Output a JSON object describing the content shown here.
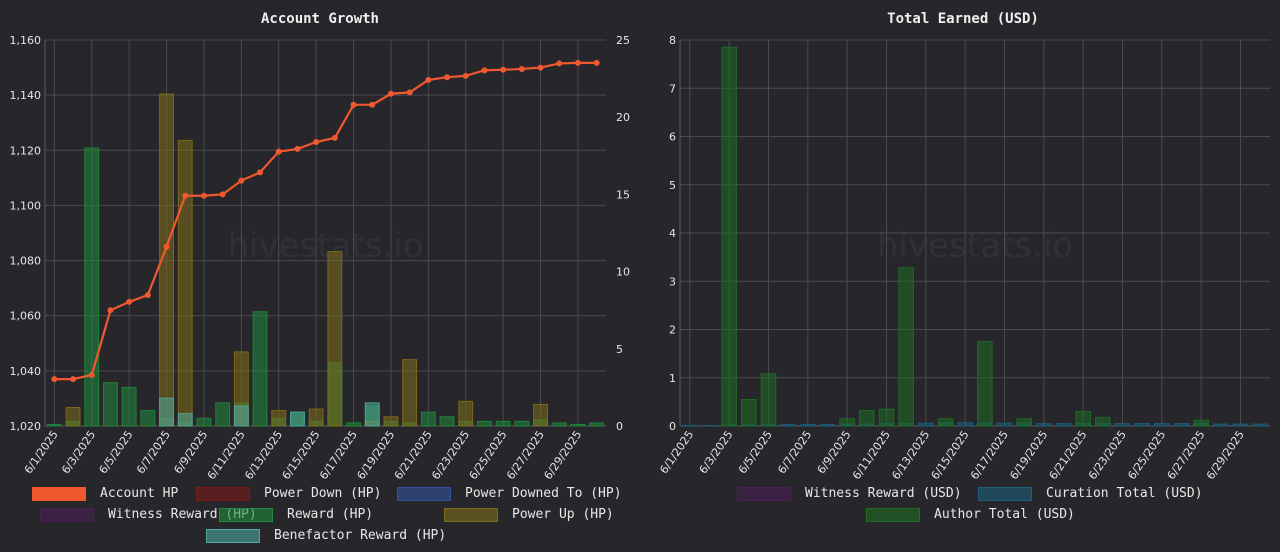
{
  "watermark": "hivestats.io",
  "chart_data": [
    {
      "type": "bar",
      "title": "Account Growth",
      "x": [
        "6/1/2025",
        "6/2/2025",
        "6/3/2025",
        "6/4/2025",
        "6/5/2025",
        "6/6/2025",
        "6/7/2025",
        "6/8/2025",
        "6/9/2025",
        "6/10/2025",
        "6/11/2025",
        "6/12/2025",
        "6/13/2025",
        "6/14/2025",
        "6/15/2025",
        "6/16/2025",
        "6/17/2025",
        "6/18/2025",
        "6/19/2025",
        "6/20/2025",
        "6/21/2025",
        "6/22/2025",
        "6/23/2025",
        "6/24/2025",
        "6/25/2025",
        "6/26/2025",
        "6/27/2025",
        "6/28/2025",
        "6/29/2025",
        "6/30/2025"
      ],
      "x_tick_labels": [
        "6/1/2025",
        "6/3/2025",
        "6/5/2025",
        "6/7/2025",
        "6/9/2025",
        "6/11/2025",
        "6/13/2025",
        "6/15/2025",
        "6/17/2025",
        "6/19/2025",
        "6/21/2025",
        "6/23/2025",
        "6/25/2025",
        "6/27/2025",
        "6/29/2025"
      ],
      "y_left": {
        "ylim": [
          1020,
          1160
        ],
        "ticks": [
          "1,020",
          "1,040",
          "1,060",
          "1,080",
          "1,100",
          "1,120",
          "1,140",
          "1,160"
        ]
      },
      "y_right": {
        "ylim": [
          0,
          25
        ],
        "ticks": [
          "0",
          "5",
          "10",
          "15",
          "20",
          "25"
        ]
      },
      "legend": "bottom",
      "grid": true,
      "series": [
        {
          "name": "Account HP",
          "type": "line",
          "axis": "left",
          "color": "#f0582f",
          "values": [
            1037,
            1037,
            1038.5,
            1062,
            1065,
            1067.5,
            1085,
            1103.5,
            1103.5,
            1104,
            1109,
            1112,
            1119.5,
            1120.5,
            1123,
            1124.5,
            1136.5,
            1136.5,
            1140.5,
            1141,
            1145.5,
            1146.5,
            1147,
            1149,
            1149.2,
            1149.5,
            1150,
            1151.5,
            1151.7,
            1151.7
          ]
        },
        {
          "name": "Power Down (HP)",
          "type": "bar",
          "axis": "right",
          "color": "#7a1a1a",
          "values": [
            0,
            0,
            0,
            0,
            0,
            0,
            0,
            0,
            0,
            0,
            0,
            0,
            0,
            0,
            0,
            0,
            0,
            0,
            0,
            0,
            0,
            0,
            0,
            0,
            0,
            0,
            0,
            0,
            0,
            0
          ]
        },
        {
          "name": "Power Downed To (HP)",
          "type": "bar",
          "axis": "right",
          "color": "#33539e",
          "values": [
            0,
            0,
            0,
            0,
            0,
            0,
            0,
            0,
            0,
            0,
            0,
            0,
            0,
            0,
            0,
            0,
            0,
            0,
            0,
            0,
            0,
            0,
            0,
            0,
            0,
            0,
            0,
            0,
            0,
            0
          ]
        },
        {
          "name": "Witness Reward (HP)",
          "type": "bar",
          "axis": "right",
          "color": "#4a1f55",
          "values": [
            0,
            0,
            0,
            0,
            0,
            0,
            0,
            0,
            0,
            0,
            0,
            0,
            0,
            0,
            0,
            0,
            0,
            0,
            0,
            0,
            0,
            0,
            0,
            0,
            0,
            0,
            0,
            0,
            0,
            0
          ]
        },
        {
          "name": "Reward (HP)",
          "type": "bar",
          "axis": "right",
          "color": "#1f8a3c",
          "values": [
            0.1,
            0.3,
            18,
            2.8,
            2.5,
            1,
            0.5,
            0.2,
            0.5,
            1.5,
            1.5,
            7.4,
            0.5,
            0.9,
            0.3,
            4.1,
            0.2,
            1.3,
            0.3,
            0.2,
            0.9,
            0.6,
            0.3,
            0.3,
            0.3,
            0.3,
            0.4,
            0.2,
            0.1,
            0.2
          ]
        },
        {
          "name": "Power Up (HP)",
          "type": "bar",
          "axis": "right",
          "color": "#7f6d1a",
          "values": [
            0,
            1.2,
            0,
            0,
            0,
            0,
            21.5,
            18.5,
            0,
            0,
            4.8,
            0,
            1,
            0,
            1.1,
            11.3,
            0,
            0.3,
            0.6,
            4.3,
            0,
            0,
            1.6,
            0,
            0,
            0,
            1.4,
            0,
            0,
            0
          ]
        },
        {
          "name": "Benefactor Reward (HP)",
          "type": "bar",
          "axis": "right",
          "color": "#4ea79c",
          "values": [
            0,
            0,
            0,
            0,
            0,
            0,
            1.8,
            0.8,
            0,
            0,
            1.3,
            0,
            0,
            0.9,
            0,
            0,
            0,
            1.5,
            0,
            0,
            0,
            0,
            0,
            0,
            0,
            0,
            0,
            0,
            0,
            0
          ]
        }
      ]
    },
    {
      "type": "bar",
      "title": "Total Earned (USD)",
      "x": [
        "6/1/2025",
        "6/2/2025",
        "6/3/2025",
        "6/4/2025",
        "6/5/2025",
        "6/6/2025",
        "6/7/2025",
        "6/8/2025",
        "6/9/2025",
        "6/10/2025",
        "6/11/2025",
        "6/12/2025",
        "6/13/2025",
        "6/14/2025",
        "6/15/2025",
        "6/16/2025",
        "6/17/2025",
        "6/18/2025",
        "6/19/2025",
        "6/20/2025",
        "6/21/2025",
        "6/22/2025",
        "6/23/2025",
        "6/24/2025",
        "6/25/2025",
        "6/26/2025",
        "6/27/2025",
        "6/28/2025",
        "6/29/2025",
        "6/30/2025"
      ],
      "x_tick_labels": [
        "6/1/2025",
        "6/3/2025",
        "6/5/2025",
        "6/7/2025",
        "6/9/2025",
        "6/11/2025",
        "6/13/2025",
        "6/15/2025",
        "6/17/2025",
        "6/19/2025",
        "6/21/2025",
        "6/23/2025",
        "6/25/2025",
        "6/27/2025",
        "6/29/2025"
      ],
      "y_left": {
        "ylim": [
          0,
          8
        ],
        "ticks": [
          "0",
          "1",
          "2",
          "3",
          "4",
          "5",
          "6",
          "7",
          "8"
        ]
      },
      "legend": "bottom",
      "grid": true,
      "series": [
        {
          "name": "Witness Reward (USD)",
          "type": "bar",
          "color": "#4a1f55",
          "values": [
            0,
            0,
            0,
            0,
            0,
            0,
            0,
            0,
            0,
            0,
            0,
            0,
            0,
            0,
            0,
            0,
            0,
            0,
            0,
            0,
            0,
            0,
            0,
            0,
            0,
            0,
            0,
            0,
            0,
            0
          ]
        },
        {
          "name": "Curation Total (USD)",
          "type": "bar",
          "color": "#1d5f7a",
          "values": [
            0.01,
            0.01,
            0.02,
            0.02,
            0.02,
            0.03,
            0.03,
            0.03,
            0.04,
            0.04,
            0.05,
            0.05,
            0.06,
            0.07,
            0.07,
            0.06,
            0.06,
            0.06,
            0.05,
            0.05,
            0.05,
            0.05,
            0.05,
            0.05,
            0.05,
            0.05,
            0.05,
            0.04,
            0.04,
            0.04
          ]
        },
        {
          "name": "Author Total (USD)",
          "type": "bar",
          "color": "#1e6d22",
          "values": [
            0,
            0,
            7.85,
            0.55,
            1.08,
            0,
            0,
            0,
            0.15,
            0.32,
            0.35,
            3.28,
            0,
            0.15,
            0,
            1.75,
            0,
            0.15,
            0,
            0,
            0.3,
            0.18,
            0,
            0,
            0,
            0,
            0.12,
            0,
            0,
            0
          ]
        }
      ]
    }
  ]
}
